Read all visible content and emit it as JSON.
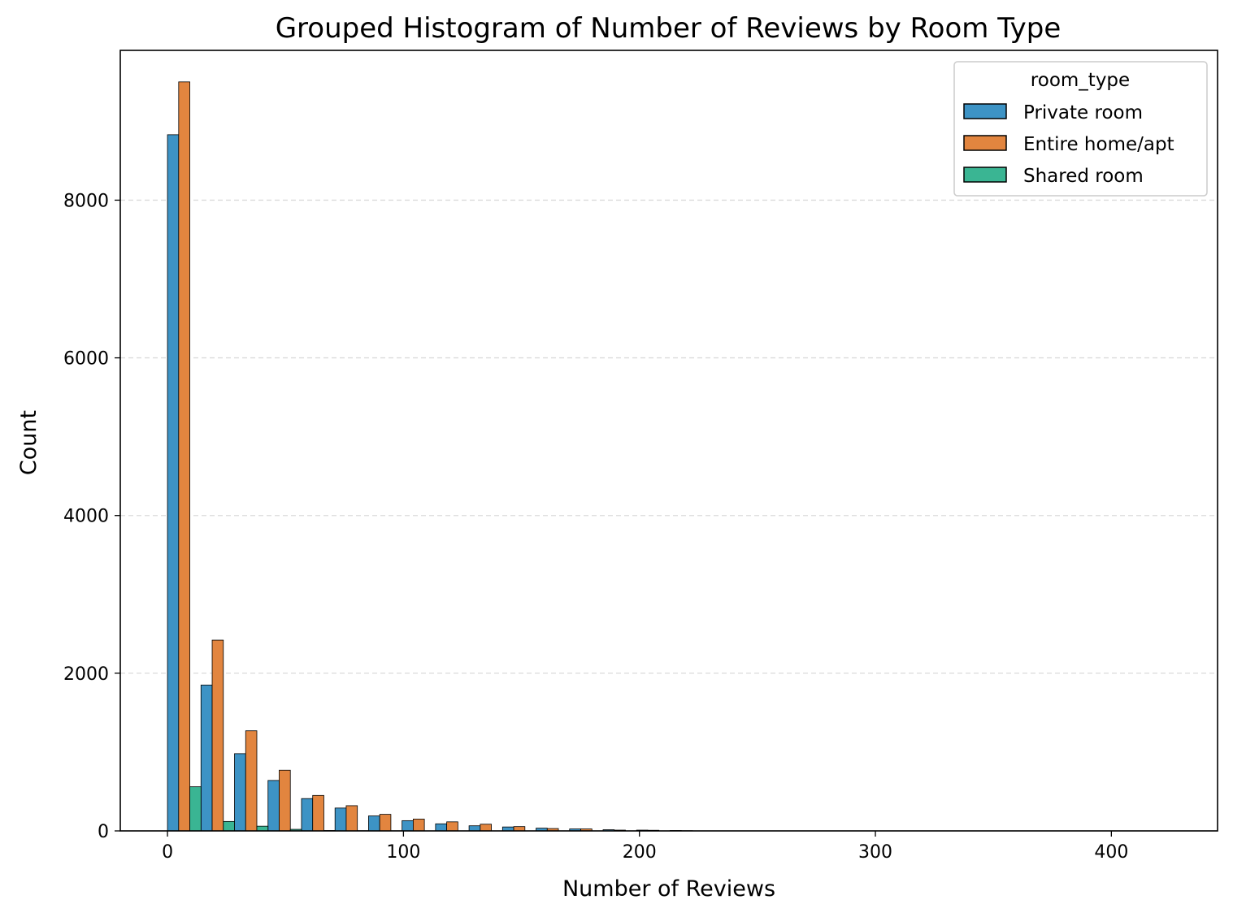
{
  "chart_data": {
    "type": "bar",
    "title": "Grouped Histogram of Number of Reviews by Room Type",
    "xlabel": "Number of Reviews",
    "ylabel": "Count",
    "xlim": [
      -20,
      445
    ],
    "ylim": [
      0,
      9900
    ],
    "xticks": [
      0,
      100,
      200,
      300,
      400
    ],
    "yticks": [
      0,
      2000,
      4000,
      6000,
      8000
    ],
    "grid": "y-dashed",
    "legend": {
      "title": "room_type",
      "placement": "top-right"
    },
    "bin_width": 14.2,
    "bin_start": 0,
    "series": [
      {
        "name": "Private room",
        "color": "#3d93c5",
        "values": [
          8830,
          1850,
          980,
          640,
          410,
          290,
          190,
          130,
          90,
          65,
          50,
          35,
          25,
          15,
          10,
          5,
          0,
          0,
          0,
          0,
          0,
          0,
          0,
          0,
          0,
          0,
          0,
          0,
          0,
          0
        ]
      },
      {
        "name": "Entire home/apt",
        "color": "#e2853f",
        "values": [
          9500,
          2420,
          1270,
          770,
          450,
          320,
          210,
          150,
          115,
          85,
          55,
          30,
          25,
          10,
          8,
          3,
          0,
          0,
          0,
          0,
          0,
          0,
          0,
          0,
          0,
          0,
          0,
          0,
          0,
          0
        ]
      },
      {
        "name": "Shared room",
        "color": "#3ab593",
        "values": [
          560,
          120,
          60,
          20,
          5,
          3,
          2,
          1,
          1,
          0,
          0,
          0,
          0,
          0,
          0,
          0,
          0,
          0,
          0,
          0,
          0,
          0,
          0,
          0,
          0,
          0,
          0,
          0,
          0,
          0
        ]
      }
    ]
  }
}
